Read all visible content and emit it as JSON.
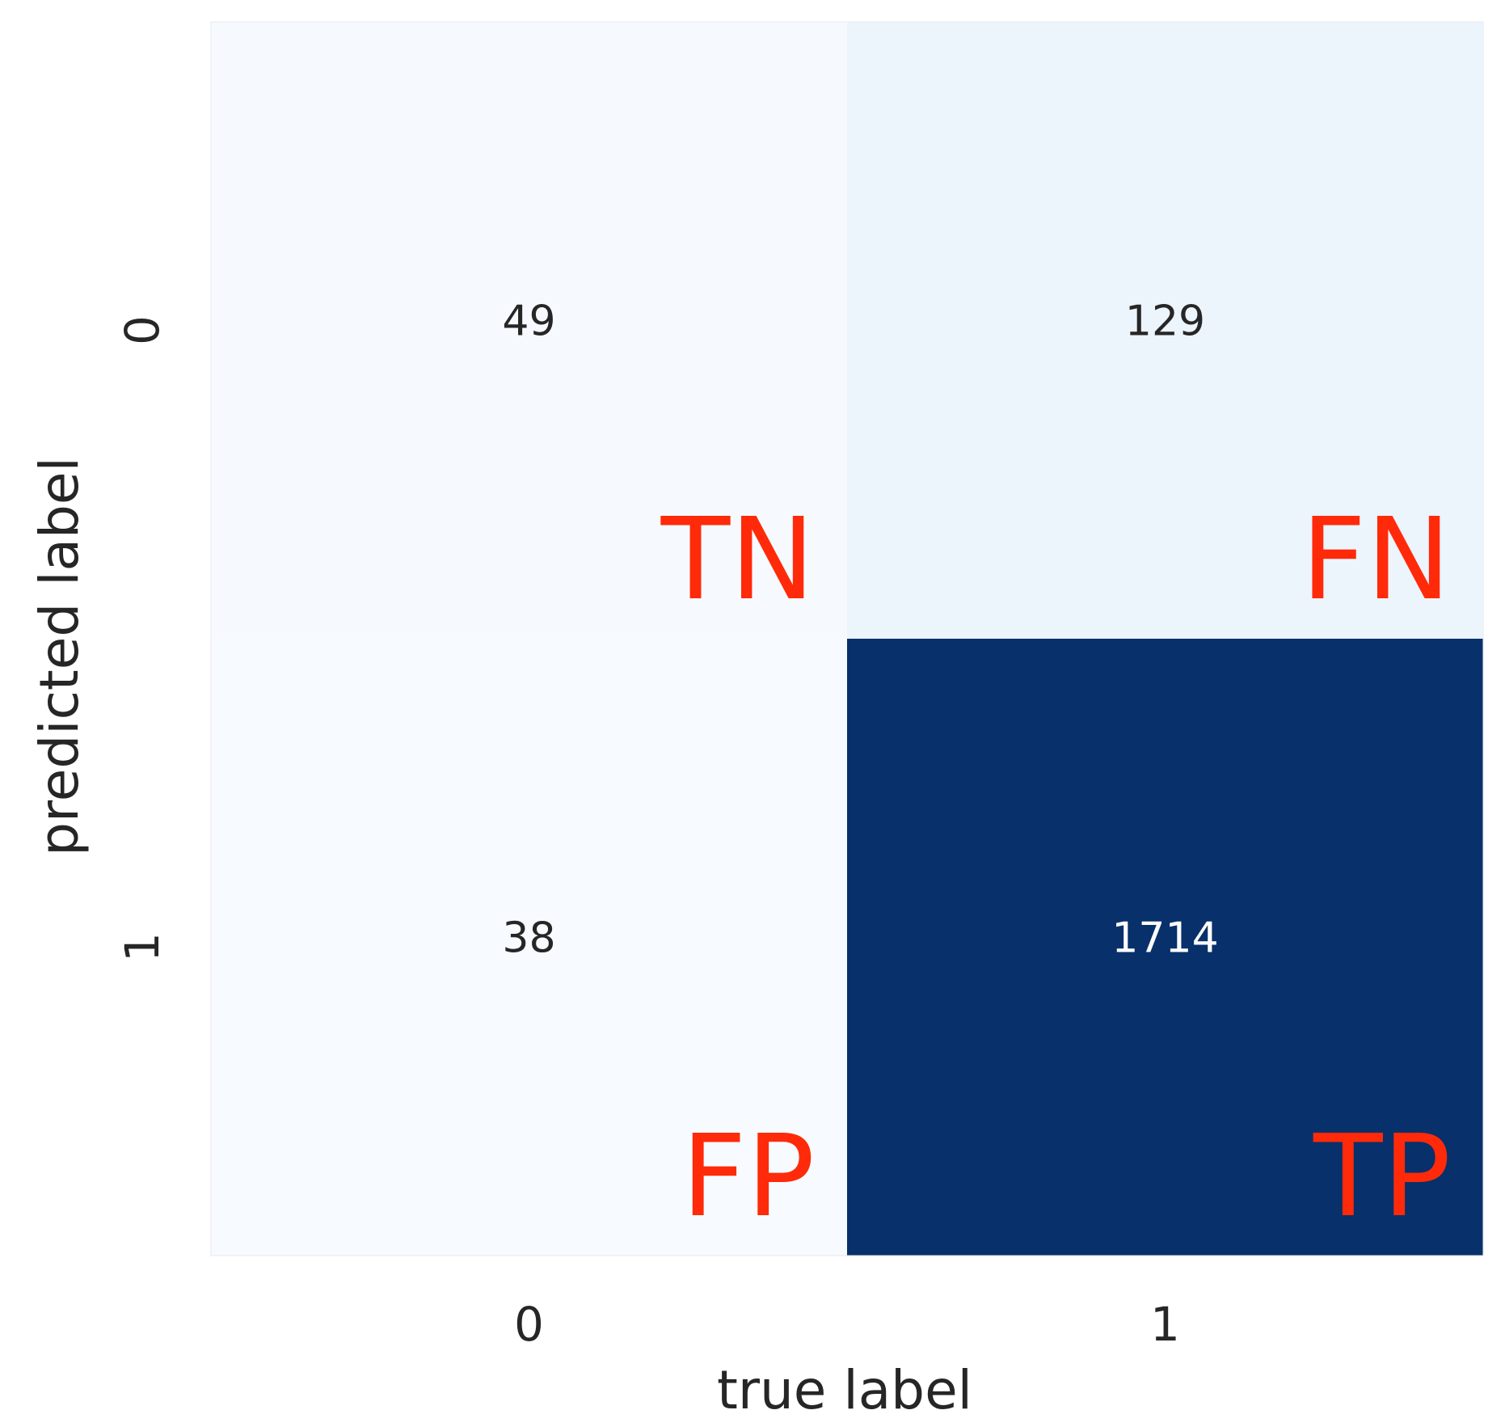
{
  "chart_data": {
    "type": "heatmap",
    "title": "",
    "xlabel": "true label",
    "ylabel": "predicted label",
    "x_tick_labels": [
      "0",
      "1"
    ],
    "y_tick_labels": [
      "0",
      "1"
    ],
    "matrix": [
      [
        49,
        129
      ],
      [
        38,
        1714
      ]
    ],
    "cell_tags": [
      [
        "TN",
        "FN"
      ],
      [
        "FP",
        "TP"
      ]
    ],
    "colormap": "Blues",
    "colorbar": false,
    "grid": false,
    "colors": {
      "low": "#f7fbff",
      "high": "#08306b",
      "tag_color": "#ff2a0a",
      "text_dark": "#262626",
      "text_light": "#ffffff"
    }
  }
}
